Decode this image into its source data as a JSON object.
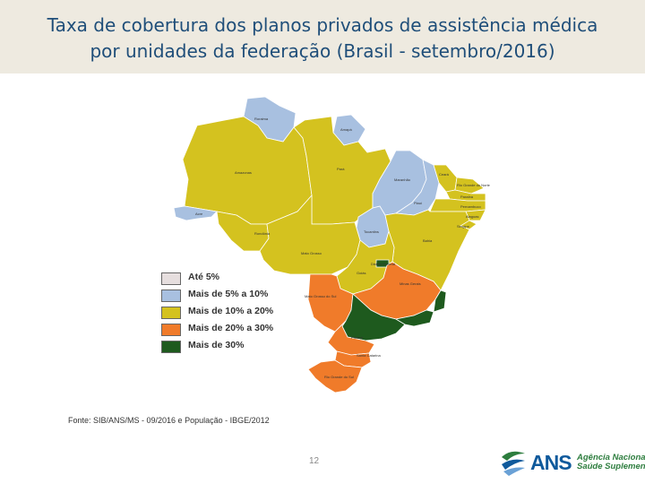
{
  "title": {
    "line1": "Taxa de cobertura dos planos privados de assistência médica",
    "line2": "por unidades da federação (Brasil - setembro/2016)"
  },
  "colors": {
    "ate5": "#e6dede",
    "5a10": "#a8c0e0",
    "10a20": "#d4c21f",
    "20a30": "#f07b2a",
    "mais30": "#1e5a1e",
    "title_bg": "#eeeae0"
  },
  "legend": [
    {
      "label": "Até 5%",
      "color": "#e6dede"
    },
    {
      "label": "Mais de 5% a 10%",
      "color": "#a8c0e0"
    },
    {
      "label": "Mais de 10% a 20%",
      "color": "#d4c21f"
    },
    {
      "label": "Mais de 20% a 30%",
      "color": "#f07b2a"
    },
    {
      "label": "Mais de 30%",
      "color": "#1e5a1e"
    }
  ],
  "states": {
    "roraima": "Roraima",
    "amapa": "Amapá",
    "amazonas": "Amazonas",
    "para": "Pará",
    "maranhao": "Maranhão",
    "ceara": "Ceará",
    "rio_grande_do_norte": "Rio Grande do Norte",
    "paraiba": "Paraíba",
    "pernambuco": "Pernambuco",
    "piaui": "Piauí",
    "alagoas": "Alagoas",
    "sergipe": "Sergipe",
    "acre": "Acre",
    "rondonia": "Rondônia",
    "tocantins": "Tocantins",
    "bahia": "Bahia",
    "mato_grosso": "Mato Grosso",
    "distrito_federal": "Distrito Federal",
    "goias": "Goiás",
    "minas_gerais": "Minas Gerais",
    "mato_grosso_do_sul": "Mato Grosso do Sul",
    "parana": "Paraná",
    "santa_catarina": "Santa Catarina",
    "rio_grande_do_sul": "Rio Grande do Sul"
  },
  "source": "Fonte: SIB/ANS/MS - 09/2016 e População - IBGE/2012",
  "page_number": "12",
  "logo": {
    "name": "ANS",
    "line1": "Agência Nacional de",
    "line2": "Saúde Suplementar"
  }
}
